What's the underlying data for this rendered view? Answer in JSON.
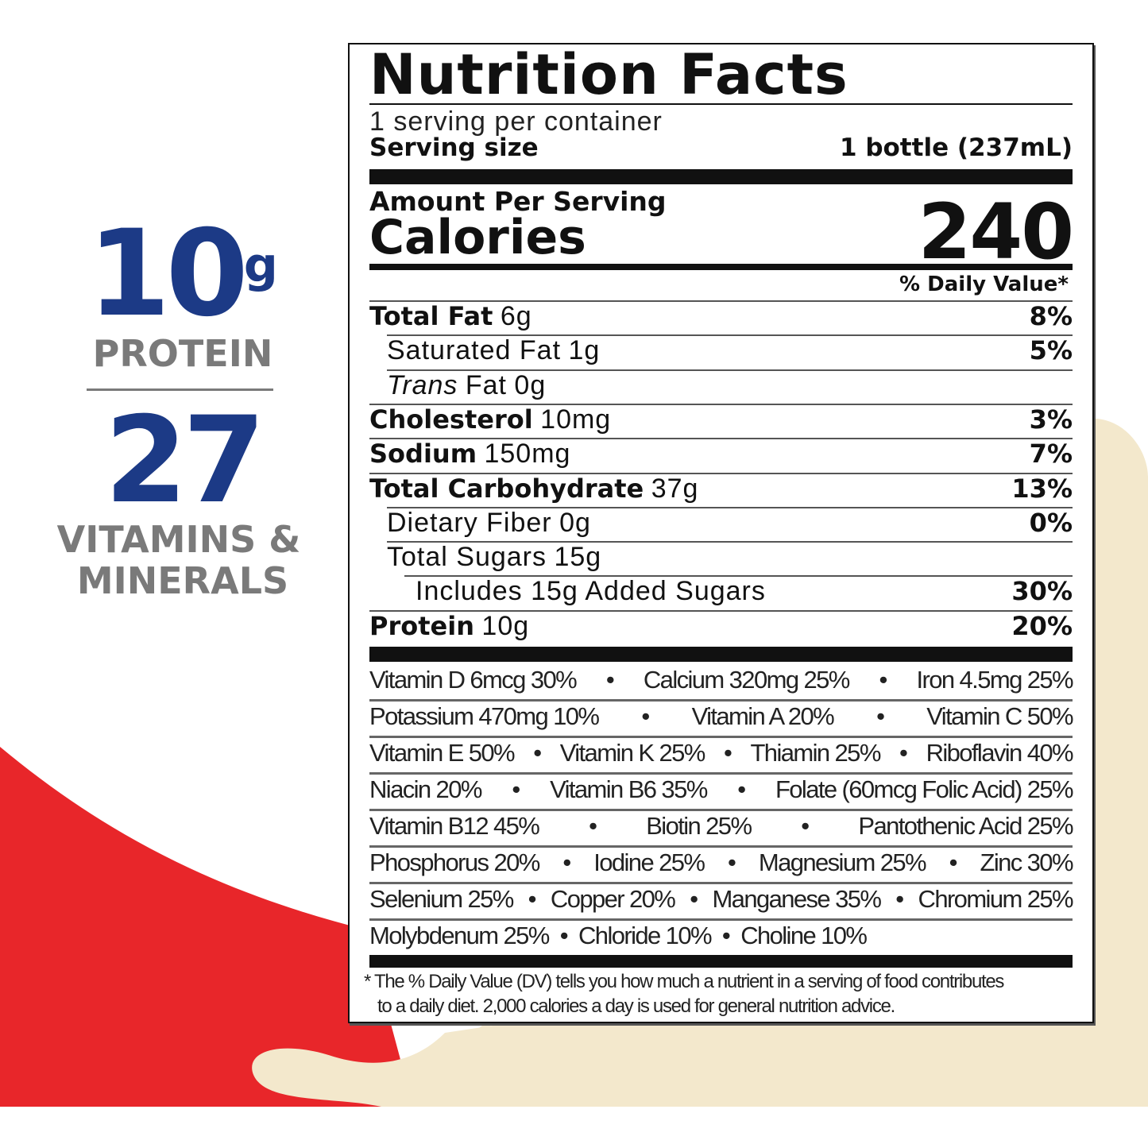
{
  "colors": {
    "brand_blue": "#1c3a86",
    "red": "#e8262a",
    "cream": "#f3e8cc",
    "gray": "#7a7a7a"
  },
  "promo": {
    "protein_value": "10",
    "protein_unit": "g",
    "protein_label": "PROTEIN",
    "vitamins_value": "27",
    "vitamins_line1": "VITAMINS &",
    "vitamins_line2": "MINERALS"
  },
  "label": {
    "title": "Nutrition Facts",
    "servings": "1 serving per container",
    "serving_size_label": "Serving size",
    "serving_size_value": "1 bottle (237mL)",
    "amount_per_serving": "Amount Per Serving",
    "calories_label": "Calories",
    "calories_value": "240",
    "dv_header": "% Daily Value*",
    "nutrients": [
      {
        "name": "Total Fat",
        "amount": "6g",
        "dv": "8%",
        "bold": true,
        "indent": 0
      },
      {
        "name": "Saturated Fat",
        "amount": "1g",
        "dv": "5%",
        "bold": false,
        "indent": 1
      },
      {
        "name": "Trans",
        "name2": "Fat",
        "amount": "0g",
        "dv": "",
        "bold": false,
        "indent": 1,
        "italic": true
      },
      {
        "name": "Cholesterol",
        "amount": "10mg",
        "dv": "3%",
        "bold": true,
        "indent": 0
      },
      {
        "name": "Sodium",
        "amount": "150mg",
        "dv": "7%",
        "bold": true,
        "indent": 0
      },
      {
        "name": "Total Carbohydrate",
        "amount": "37g",
        "dv": "13%",
        "bold": true,
        "indent": 0
      },
      {
        "name": "Dietary Fiber",
        "amount": "0g",
        "dv": "0%",
        "bold": false,
        "indent": 1
      },
      {
        "name": "Total Sugars",
        "amount": "15g",
        "dv": "",
        "bold": false,
        "indent": 1
      },
      {
        "name": "Includes 15g Added Sugars",
        "amount": "",
        "dv": "30%",
        "bold": false,
        "indent": 2
      },
      {
        "name": "Protein",
        "amount": "10g",
        "dv": "20%",
        "bold": true,
        "indent": 0
      }
    ],
    "vitamin_rows": [
      [
        "Vitamin D 6mcg 30%",
        "Calcium 320mg 25%",
        "Iron 4.5mg 25%"
      ],
      [
        "Potassium 470mg 10%",
        "Vitamin A 20%",
        "Vitamin C 50%"
      ],
      [
        "Vitamin E 50%",
        "Vitamin K 25%",
        "Thiamin 25%",
        "Riboflavin 40%"
      ],
      [
        "Niacin 20%",
        "Vitamin B6 35%",
        "Folate (60mcg Folic Acid) 25%"
      ],
      [
        "Vitamin B12 45%",
        "Biotin 25%",
        "Pantothenic Acid 25%"
      ],
      [
        "Phosphorus 20%",
        "Iodine 25%",
        "Magnesium 25%",
        "Zinc 30%"
      ],
      [
        "Selenium 25%",
        "Copper 20%",
        "Manganese 35%",
        "Chromium 25%"
      ],
      [
        "Molybdenum 25%",
        "Chloride 10%",
        "Choline 10%"
      ]
    ],
    "footnote_line1": "* The % Daily Value (DV) tells you how much a nutrient in a serving of food contributes",
    "footnote_line2": "to a daily diet. 2,000 calories a day is used for general nutrition advice."
  }
}
